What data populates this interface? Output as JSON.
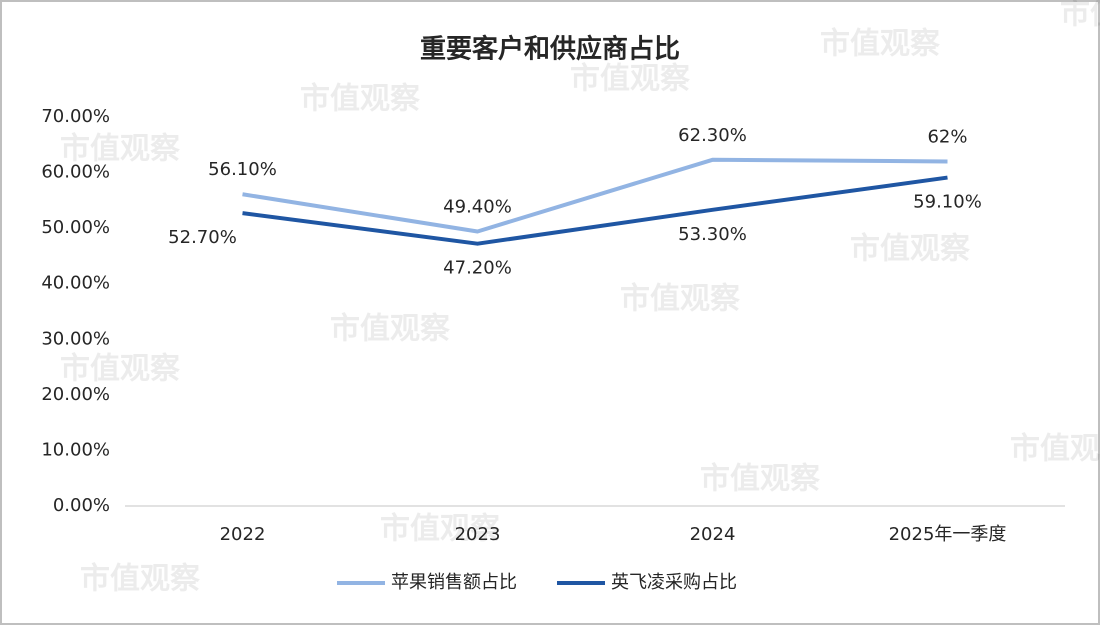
{
  "chart_data": {
    "type": "line",
    "title": "重要客户和供应商占比",
    "categories": [
      "2022",
      "2023",
      "2024",
      "2025年一季度"
    ],
    "series": [
      {
        "name": "苹果销售额占比",
        "color": "#92b4e3",
        "values": [
          56.1,
          49.4,
          62.3,
          62
        ],
        "value_labels": [
          "56.10%",
          "49.40%",
          "62.30%",
          "62%"
        ]
      },
      {
        "name": "英飞凌采购占比",
        "color": "#1f56a3",
        "values": [
          52.7,
          47.2,
          53.3,
          59.1
        ],
        "value_labels": [
          "52.70%",
          "47.20%",
          "53.30%",
          "59.10%"
        ]
      }
    ],
    "ylim": [
      0,
      70
    ],
    "yticks": [
      {
        "value": 0,
        "label": "0.00%"
      },
      {
        "value": 10,
        "label": "10.00%"
      },
      {
        "value": 20,
        "label": "20.00%"
      },
      {
        "value": 30,
        "label": "30.00%"
      },
      {
        "value": 40,
        "label": "40.00%"
      },
      {
        "value": 50,
        "label": "50.00%"
      },
      {
        "value": 60,
        "label": "60.00%"
      },
      {
        "value": 70,
        "label": "70.00%"
      }
    ],
    "grid": false,
    "legend": "bottom",
    "watermark": "市值观察"
  }
}
